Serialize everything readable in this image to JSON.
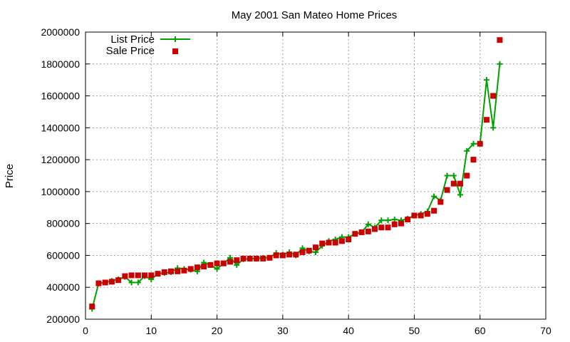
{
  "chart_data": {
    "type": "line",
    "title": "May 2001 San Mateo Home Prices",
    "xlabel": "",
    "ylabel": "Price",
    "xlim": [
      0,
      70
    ],
    "ylim": [
      200000,
      2000000
    ],
    "x_ticks": [
      0,
      10,
      20,
      30,
      40,
      50,
      60,
      70
    ],
    "y_ticks": [
      200000,
      400000,
      600000,
      800000,
      1000000,
      1200000,
      1400000,
      1600000,
      1800000,
      2000000
    ],
    "grid": true,
    "legend_position": "top-left",
    "series": [
      {
        "name": "List Price",
        "style": "linespoints",
        "marker": "plus",
        "color": "#00a000",
        "x": [
          1,
          2,
          3,
          4,
          5,
          6,
          7,
          8,
          9,
          10,
          11,
          12,
          13,
          14,
          15,
          16,
          17,
          18,
          19,
          20,
          21,
          22,
          23,
          24,
          25,
          26,
          27,
          28,
          29,
          30,
          31,
          32,
          33,
          34,
          35,
          36,
          37,
          38,
          39,
          40,
          41,
          42,
          43,
          44,
          45,
          46,
          47,
          48,
          49,
          50,
          51,
          52,
          53,
          54,
          55,
          56,
          57,
          58,
          59,
          60,
          61,
          62,
          63
        ],
        "values": [
          265000,
          425000,
          430000,
          440000,
          450000,
          465000,
          430000,
          430000,
          470000,
          450000,
          485000,
          490000,
          495000,
          520000,
          515000,
          510000,
          500000,
          555000,
          540000,
          515000,
          550000,
          585000,
          540000,
          575000,
          580000,
          580000,
          585000,
          585000,
          615000,
          605000,
          620000,
          600000,
          645000,
          625000,
          620000,
          660000,
          690000,
          700000,
          715000,
          715000,
          735000,
          745000,
          795000,
          775000,
          820000,
          820000,
          825000,
          820000,
          830000,
          850000,
          860000,
          875000,
          970000,
          945000,
          1100000,
          1100000,
          980000,
          1255000,
          1300000,
          1300000,
          1700000,
          1400000,
          1800000
        ]
      },
      {
        "name": "Sale Price",
        "style": "points",
        "marker": "square",
        "color": "#cc0000",
        "x": [
          1,
          2,
          3,
          4,
          5,
          6,
          7,
          8,
          9,
          10,
          11,
          12,
          13,
          14,
          15,
          16,
          17,
          18,
          19,
          20,
          21,
          22,
          23,
          24,
          25,
          26,
          27,
          28,
          29,
          30,
          31,
          32,
          33,
          34,
          35,
          36,
          37,
          38,
          39,
          40,
          41,
          42,
          43,
          44,
          45,
          46,
          47,
          48,
          49,
          50,
          51,
          52,
          53,
          54,
          55,
          56,
          57,
          58,
          59,
          60,
          61,
          62,
          63
        ],
        "values": [
          280000,
          425000,
          430000,
          435000,
          445000,
          470000,
          475000,
          475000,
          475000,
          475000,
          485000,
          495000,
          500000,
          500000,
          505000,
          515000,
          525000,
          530000,
          540000,
          550000,
          550000,
          560000,
          570000,
          580000,
          580000,
          580000,
          580000,
          585000,
          600000,
          600000,
          605000,
          605000,
          620000,
          630000,
          650000,
          675000,
          680000,
          680000,
          690000,
          700000,
          735000,
          745000,
          750000,
          765000,
          775000,
          775000,
          795000,
          800000,
          825000,
          850000,
          850000,
          860000,
          880000,
          935000,
          1010000,
          1050000,
          1050000,
          1100000,
          1200000,
          1300000,
          1450000,
          1600000,
          1950000
        ]
      }
    ]
  }
}
